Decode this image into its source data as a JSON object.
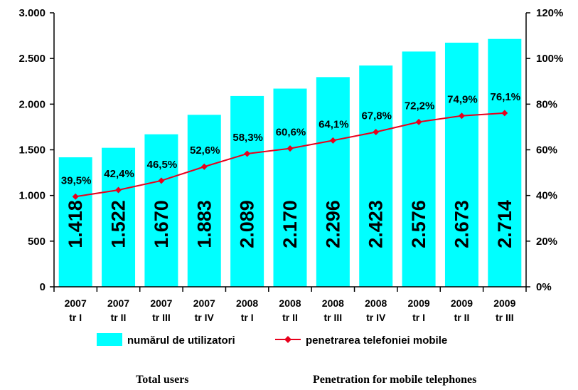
{
  "chart_data": {
    "type": "bar",
    "categories": [
      [
        "2007",
        "tr I"
      ],
      [
        "2007",
        "tr II"
      ],
      [
        "2007",
        "tr III"
      ],
      [
        "2007",
        "tr IV"
      ],
      [
        "2008",
        "tr I"
      ],
      [
        "2008",
        "tr II"
      ],
      [
        "2008",
        "tr III"
      ],
      [
        "2008",
        "tr IV"
      ],
      [
        "2009",
        "tr I"
      ],
      [
        "2009",
        "tr II"
      ],
      [
        "2009",
        "tr III"
      ]
    ],
    "series": [
      {
        "name": "numărul de utilizatori",
        "type": "bar",
        "axis": "left",
        "color": "#00ffff",
        "values": [
          1418,
          1522,
          1670,
          1883,
          2089,
          2170,
          2296,
          2423,
          2576,
          2673,
          2714
        ],
        "labels": [
          "1.418",
          "1.522",
          "1.670",
          "1.883",
          "2.089",
          "2.170",
          "2.296",
          "2.423",
          "2.576",
          "2.673",
          "2.714"
        ]
      },
      {
        "name": "penetrarea telefoniei mobile",
        "type": "line",
        "axis": "right",
        "color": "#e8001c",
        "values": [
          39.5,
          42.4,
          46.5,
          52.6,
          58.3,
          60.6,
          64.1,
          67.8,
          72.2,
          74.9,
          76.1
        ],
        "labels": [
          "39,5%",
          "42,4%",
          "46,5%",
          "52,6%",
          "58,3%",
          "60,6%",
          "64,1%",
          "67,8%",
          "72,2%",
          "74,9%",
          "76,1%"
        ]
      }
    ],
    "y_left": {
      "min": 0,
      "max": 3000,
      "ticks": [
        0,
        500,
        1000,
        1500,
        2000,
        2500,
        3000
      ],
      "tick_labels": [
        "0",
        "500",
        "1.000",
        "1.500",
        "2.000",
        "2.500",
        "3.000"
      ]
    },
    "y_right": {
      "min": 0,
      "max": 120,
      "ticks": [
        0,
        20,
        40,
        60,
        80,
        100,
        120
      ],
      "tick_labels": [
        "0%",
        "20%",
        "40%",
        "60%",
        "80%",
        "100%",
        "120%"
      ]
    },
    "legend_position": "bottom",
    "grid": false
  },
  "captions": {
    "left": "Total users",
    "right": "Penetration for  mobile telephones"
  }
}
